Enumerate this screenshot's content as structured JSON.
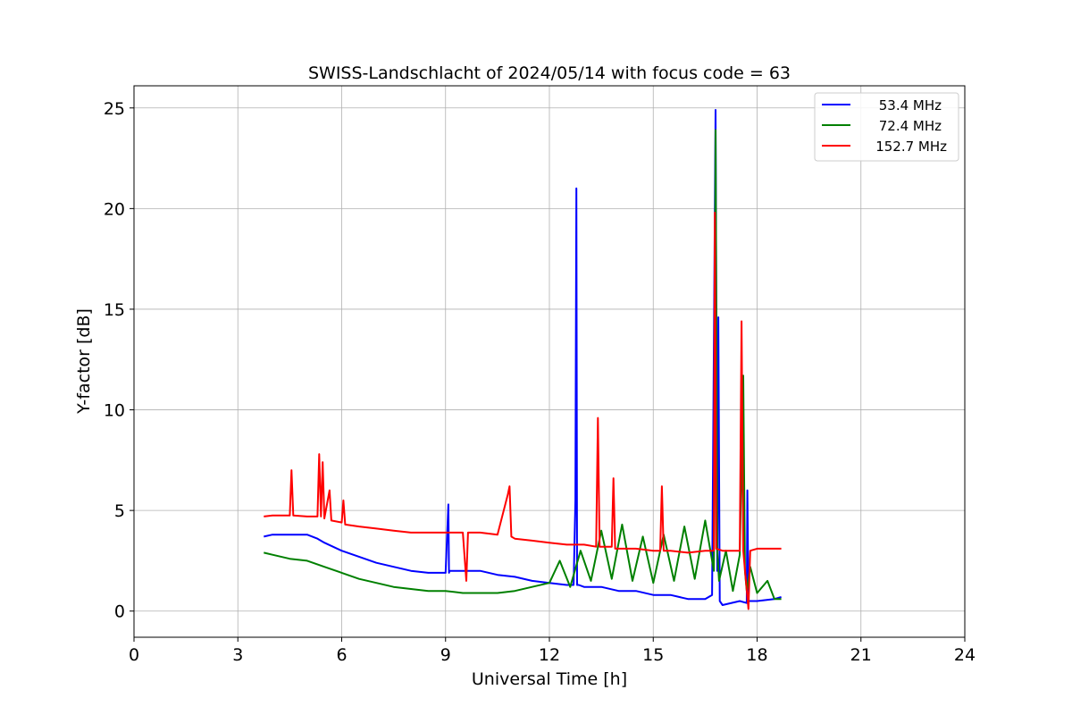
{
  "chart_data": {
    "type": "line",
    "title": "SWISS-Landschlacht of 2024/05/14 with focus code = 63",
    "xlabel": "Universal Time [h]",
    "ylabel": "Y-factor [dB]",
    "xlim": [
      0,
      24
    ],
    "ylim": [
      -1.3,
      26.1
    ],
    "xticks": [
      0,
      3,
      6,
      9,
      12,
      15,
      18,
      21,
      24
    ],
    "xtick_labels": [
      "0",
      "3",
      "6",
      "9",
      "12",
      "15",
      "18",
      "21",
      "24"
    ],
    "yticks": [
      0,
      5,
      10,
      15,
      20,
      25
    ],
    "ytick_labels": [
      "0",
      "5",
      "10",
      "15",
      "20",
      "25"
    ],
    "grid": true,
    "legend_position": "top-right",
    "series": [
      {
        "name": "53.4 MHz",
        "color": "#0000ff",
        "x": [
          3.75,
          4.0,
          4.5,
          5.0,
          5.3,
          5.5,
          6.0,
          6.5,
          7.0,
          7.5,
          8.0,
          8.5,
          9.0,
          9.08,
          9.1,
          9.12,
          9.5,
          10.0,
          10.5,
          11.0,
          11.5,
          12.0,
          12.5,
          12.7,
          12.75,
          12.78,
          12.8,
          12.85,
          13.0,
          13.5,
          14.0,
          14.5,
          15.0,
          15.5,
          16.0,
          16.5,
          16.7,
          16.8,
          16.85,
          16.88,
          16.92,
          17.0,
          17.5,
          17.7,
          17.72,
          17.75,
          18.0,
          18.5,
          18.7
        ],
        "y": [
          3.7,
          3.8,
          3.8,
          3.8,
          3.6,
          3.4,
          3.0,
          2.7,
          2.4,
          2.2,
          2.0,
          1.9,
          1.9,
          5.3,
          1.9,
          2.0,
          2.0,
          2.0,
          1.8,
          1.7,
          1.5,
          1.4,
          1.3,
          1.3,
          5.5,
          21.0,
          1.3,
          1.3,
          1.2,
          1.2,
          1.0,
          1.0,
          0.8,
          0.8,
          0.6,
          0.6,
          0.8,
          24.9,
          2.0,
          14.6,
          0.5,
          0.3,
          0.5,
          0.4,
          6.0,
          0.5,
          0.5,
          0.6,
          0.7
        ]
      },
      {
        "name": "72.4 MHz",
        "color": "#008000",
        "x": [
          3.75,
          4.0,
          4.5,
          5.0,
          5.5,
          6.0,
          6.5,
          7.0,
          7.5,
          8.0,
          8.5,
          9.0,
          9.5,
          10.0,
          10.5,
          11.0,
          11.5,
          12.0,
          12.3,
          12.6,
          12.9,
          13.2,
          13.5,
          13.8,
          14.1,
          14.4,
          14.7,
          15.0,
          15.3,
          15.6,
          15.9,
          16.2,
          16.5,
          16.75,
          16.8,
          16.85,
          16.9,
          17.1,
          17.3,
          17.5,
          17.6,
          17.65,
          17.7,
          17.8,
          18.0,
          18.3,
          18.5,
          18.7
        ],
        "y": [
          2.9,
          2.8,
          2.6,
          2.5,
          2.2,
          1.9,
          1.6,
          1.4,
          1.2,
          1.1,
          1.0,
          1.0,
          0.9,
          0.9,
          0.9,
          1.0,
          1.2,
          1.4,
          2.5,
          1.2,
          3.0,
          1.5,
          4.0,
          1.6,
          4.3,
          1.5,
          3.7,
          1.4,
          3.8,
          1.5,
          4.2,
          1.6,
          4.5,
          2.0,
          23.9,
          3.0,
          1.5,
          3.0,
          1.0,
          2.8,
          11.7,
          2.0,
          1.0,
          2.2,
          0.9,
          1.5,
          0.6,
          0.6
        ]
      },
      {
        "name": "152.7 MHz",
        "color": "#ff0000",
        "x": [
          3.75,
          4.0,
          4.5,
          4.55,
          4.6,
          5.0,
          5.3,
          5.35,
          5.4,
          5.45,
          5.5,
          5.65,
          5.7,
          6.0,
          6.05,
          6.1,
          6.5,
          7.0,
          7.5,
          8.0,
          8.5,
          9.0,
          9.5,
          9.6,
          9.65,
          10.0,
          10.5,
          10.8,
          10.85,
          10.9,
          11.0,
          11.5,
          12.0,
          12.5,
          13.0,
          13.35,
          13.4,
          13.45,
          13.8,
          13.85,
          13.9,
          14.5,
          15.0,
          15.2,
          15.25,
          15.3,
          15.5,
          16.0,
          16.5,
          16.75,
          16.78,
          16.82,
          17.0,
          17.2,
          17.5,
          17.55,
          17.6,
          17.75,
          17.8,
          18.0,
          18.5,
          18.7
        ],
        "y": [
          4.7,
          4.75,
          4.75,
          7.0,
          4.75,
          4.7,
          4.7,
          7.8,
          4.7,
          7.4,
          4.6,
          6.0,
          4.5,
          4.4,
          5.5,
          4.3,
          4.2,
          4.1,
          4.0,
          3.9,
          3.9,
          3.9,
          3.9,
          1.5,
          3.9,
          3.9,
          3.8,
          5.8,
          6.2,
          3.7,
          3.6,
          3.5,
          3.4,
          3.3,
          3.3,
          3.2,
          9.6,
          3.2,
          3.2,
          6.6,
          3.1,
          3.1,
          3.0,
          3.0,
          6.2,
          3.0,
          3.0,
          2.9,
          3.0,
          3.0,
          19.8,
          3.1,
          3.0,
          3.0,
          3.0,
          14.4,
          3.0,
          0.1,
          3.0,
          3.1,
          3.1,
          3.1
        ]
      }
    ]
  }
}
